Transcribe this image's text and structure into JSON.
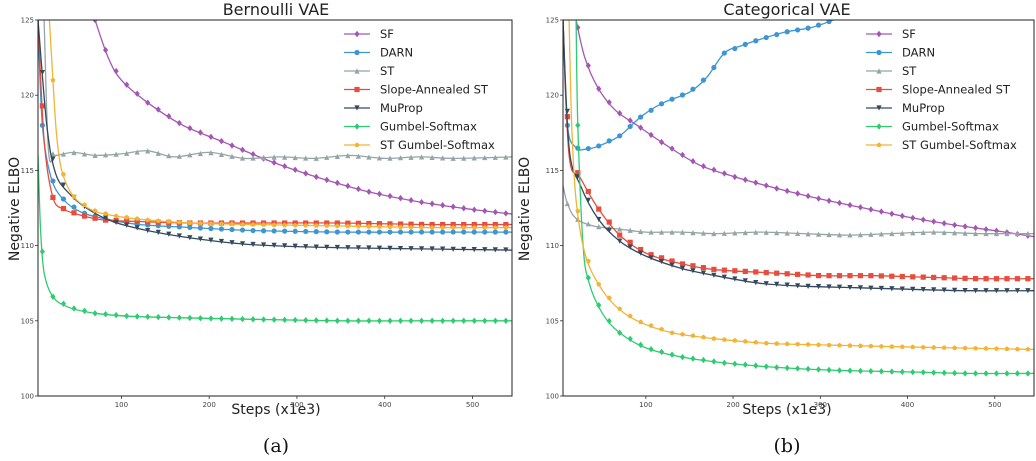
{
  "captions": [
    "(a)",
    "(b)"
  ],
  "colors": {
    "SF": "#a357b3",
    "DARN": "#3d96d3",
    "ST": "#95a5a6",
    "Slope-Annealed ST": "#e74c3c",
    "MuProp": "#34495e",
    "Gumbel-Softmax": "#2ecc71",
    "ST Gumbel-Softmax": "#f1b435"
  },
  "chart_data": [
    {
      "type": "line",
      "title": "Bernoulli VAE",
      "xlabel": "Steps (x1e3)",
      "ylabel": "Negative ELBO",
      "xlim": [
        5,
        545
      ],
      "ylim": [
        100,
        125
      ],
      "xticks": [
        100,
        200,
        300,
        400,
        500
      ],
      "yticks": [
        100,
        105,
        110,
        115,
        120,
        125
      ],
      "legend": "top-right",
      "grid": false,
      "series": [
        {
          "name": "SF",
          "marker": "diamond",
          "points": [
            [
              70,
              125
            ],
            [
              85,
              122.5
            ],
            [
              100,
              121
            ],
            [
              130,
              119.5
            ],
            [
              170,
              118
            ],
            [
              220,
              116.8
            ],
            [
              270,
              115.6
            ],
            [
              320,
              114.6
            ],
            [
              380,
              113.6
            ],
            [
              440,
              112.9
            ],
            [
              500,
              112.4
            ],
            [
              545,
              112.1
            ]
          ]
        },
        {
          "name": "DARN",
          "marker": "circle",
          "points": [
            [
              5,
              125
            ],
            [
              10,
              118
            ],
            [
              20,
              114.5
            ],
            [
              35,
              113
            ],
            [
              55,
              112.2
            ],
            [
              80,
              111.8
            ],
            [
              120,
              111.4
            ],
            [
              180,
              111.2
            ],
            [
              250,
              111.0
            ],
            [
              350,
              110.9
            ],
            [
              450,
              110.9
            ],
            [
              545,
              110.9
            ]
          ]
        },
        {
          "name": "ST",
          "marker": "triangle",
          "points": [
            [
              12,
              125
            ],
            [
              17,
              116.3
            ],
            [
              25,
              116.0
            ],
            [
              45,
              116.2
            ],
            [
              70,
              116.0
            ],
            [
              100,
              116.1
            ],
            [
              130,
              116.3
            ],
            [
              160,
              115.9
            ],
            [
              200,
              116.2
            ],
            [
              240,
              115.8
            ],
            [
              280,
              115.9
            ],
            [
              320,
              115.8
            ],
            [
              360,
              116.0
            ],
            [
              400,
              115.8
            ],
            [
              440,
              115.9
            ],
            [
              480,
              115.8
            ],
            [
              545,
              115.9
            ]
          ]
        },
        {
          "name": "Slope-Annealed ST",
          "marker": "square",
          "points": [
            [
              5,
              125
            ],
            [
              12,
              117
            ],
            [
              22,
              113.2
            ],
            [
              35,
              112.4
            ],
            [
              55,
              112.0
            ],
            [
              80,
              111.7
            ],
            [
              120,
              111.6
            ],
            [
              180,
              111.5
            ],
            [
              250,
              111.5
            ],
            [
              350,
              111.5
            ],
            [
              450,
              111.4
            ],
            [
              545,
              111.4
            ]
          ]
        },
        {
          "name": "MuProp",
          "marker": "triangle-down",
          "points": [
            [
              5,
              125
            ],
            [
              15,
              118
            ],
            [
              25,
              114.8
            ],
            [
              40,
              113.5
            ],
            [
              60,
              112.5
            ],
            [
              90,
              111.6
            ],
            [
              130,
              111.0
            ],
            [
              180,
              110.5
            ],
            [
              240,
              110.1
            ],
            [
              320,
              109.9
            ],
            [
              420,
              109.8
            ],
            [
              545,
              109.7
            ]
          ]
        },
        {
          "name": "Gumbel-Softmax",
          "marker": "diamond",
          "points": [
            [
              5,
              116
            ],
            [
              8,
              111
            ],
            [
              12,
              108.2
            ],
            [
              22,
              106.6
            ],
            [
              40,
              105.9
            ],
            [
              70,
              105.5
            ],
            [
              110,
              105.3
            ],
            [
              170,
              105.2
            ],
            [
              250,
              105.1
            ],
            [
              350,
              105.0
            ],
            [
              450,
              105.0
            ],
            [
              545,
              105.0
            ]
          ]
        },
        {
          "name": "ST Gumbel-Softmax",
          "marker": "pentagon",
          "points": [
            [
              18,
              125
            ],
            [
              22,
              121
            ],
            [
              26,
              117.5
            ],
            [
              32,
              115.0
            ],
            [
              45,
              113.3
            ],
            [
              65,
              112.4
            ],
            [
              90,
              112.0
            ],
            [
              130,
              111.7
            ],
            [
              180,
              111.5
            ],
            [
              250,
              111.4
            ],
            [
              350,
              111.3
            ],
            [
              450,
              111.2
            ],
            [
              545,
              111.2
            ]
          ]
        }
      ]
    },
    {
      "type": "line",
      "title": "Categorical VAE",
      "xlabel": "Steps (x1e3)",
      "ylabel": "Negative ELBO",
      "xlim": [
        5,
        545
      ],
      "ylim": [
        100,
        125
      ],
      "xticks": [
        100,
        200,
        300,
        400,
        500
      ],
      "yticks": [
        100,
        105,
        110,
        115,
        120,
        125
      ],
      "legend": "top-right",
      "grid": false,
      "series": [
        {
          "name": "SF",
          "marker": "diamond",
          "points": [
            [
              20,
              125
            ],
            [
              30,
              122.5
            ],
            [
              45,
              120.5
            ],
            [
              65,
              119
            ],
            [
              90,
              118
            ],
            [
              120,
              116.8
            ],
            [
              160,
              115.4
            ],
            [
              200,
              114.6
            ],
            [
              250,
              113.8
            ],
            [
              300,
              113.1
            ],
            [
              350,
              112.5
            ],
            [
              400,
              111.9
            ],
            [
              450,
              111.4
            ],
            [
              500,
              111.0
            ],
            [
              545,
              110.6
            ]
          ]
        },
        {
          "name": "DARN",
          "marker": "circle",
          "points": [
            [
              5,
              125
            ],
            [
              10,
              118
            ],
            [
              20,
              116.5
            ],
            [
              30,
              116.4
            ],
            [
              45,
              116.6
            ],
            [
              70,
              117.3
            ],
            [
              95,
              118.6
            ],
            [
              120,
              119.5
            ],
            [
              150,
              120.2
            ],
            [
              170,
              121.2
            ],
            [
              190,
              122.8
            ],
            [
              210,
              123.3
            ],
            [
              230,
              123.7
            ],
            [
              260,
              124.2
            ],
            [
              290,
              124.5
            ],
            [
              315,
              125
            ]
          ]
        },
        {
          "name": "ST",
          "marker": "triangle",
          "points": [
            [
              5,
              114
            ],
            [
              10,
              112.8
            ],
            [
              20,
              111.8
            ],
            [
              40,
              111.3
            ],
            [
              70,
              111.1
            ],
            [
              100,
              110.9
            ],
            [
              140,
              110.9
            ],
            [
              180,
              110.8
            ],
            [
              230,
              110.9
            ],
            [
              280,
              110.8
            ],
            [
              330,
              110.7
            ],
            [
              380,
              110.8
            ],
            [
              430,
              110.9
            ],
            [
              480,
              110.8
            ],
            [
              545,
              110.8
            ]
          ]
        },
        {
          "name": "Slope-Annealed ST",
          "marker": "square",
          "points": [
            [
              5,
              125
            ],
            [
              12,
              116
            ],
            [
              25,
              114.5
            ],
            [
              45,
              112.5
            ],
            [
              70,
              110.7
            ],
            [
              100,
              109.5
            ],
            [
              140,
              108.8
            ],
            [
              180,
              108.4
            ],
            [
              240,
              108.2
            ],
            [
              300,
              108.0
            ],
            [
              360,
              108.0
            ],
            [
              420,
              107.9
            ],
            [
              480,
              107.8
            ],
            [
              545,
              107.8
            ]
          ]
        },
        {
          "name": "MuProp",
          "marker": "triangle-down",
          "points": [
            [
              5,
              125
            ],
            [
              12,
              116.5
            ],
            [
              25,
              114
            ],
            [
              45,
              111.8
            ],
            [
              70,
              110.3
            ],
            [
              100,
              109.3
            ],
            [
              140,
              108.5
            ],
            [
              180,
              108.0
            ],
            [
              230,
              107.5
            ],
            [
              280,
              107.3
            ],
            [
              340,
              107.2
            ],
            [
              400,
              107.1
            ],
            [
              470,
              107.0
            ],
            [
              545,
              107.0
            ]
          ]
        },
        {
          "name": "Gumbel-Softmax",
          "marker": "diamond",
          "points": [
            [
              20,
              125
            ],
            [
              22,
              118
            ],
            [
              28,
              110
            ],
            [
              35,
              107.5
            ],
            [
              50,
              105.5
            ],
            [
              70,
              104.2
            ],
            [
              100,
              103.2
            ],
            [
              140,
              102.6
            ],
            [
              190,
              102.2
            ],
            [
              250,
              101.9
            ],
            [
              320,
              101.7
            ],
            [
              400,
              101.6
            ],
            [
              470,
              101.5
            ],
            [
              545,
              101.5
            ]
          ]
        },
        {
          "name": "ST Gumbel-Softmax",
          "marker": "pentagon",
          "points": [
            [
              12,
              125
            ],
            [
              15,
              118
            ],
            [
              20,
              113
            ],
            [
              30,
              109.5
            ],
            [
              45,
              107.5
            ],
            [
              65,
              106.0
            ],
            [
              90,
              105.0
            ],
            [
              130,
              104.2
            ],
            [
              180,
              103.8
            ],
            [
              240,
              103.5
            ],
            [
              300,
              103.4
            ],
            [
              370,
              103.3
            ],
            [
              450,
              103.2
            ],
            [
              545,
              103.1
            ]
          ]
        }
      ]
    }
  ]
}
